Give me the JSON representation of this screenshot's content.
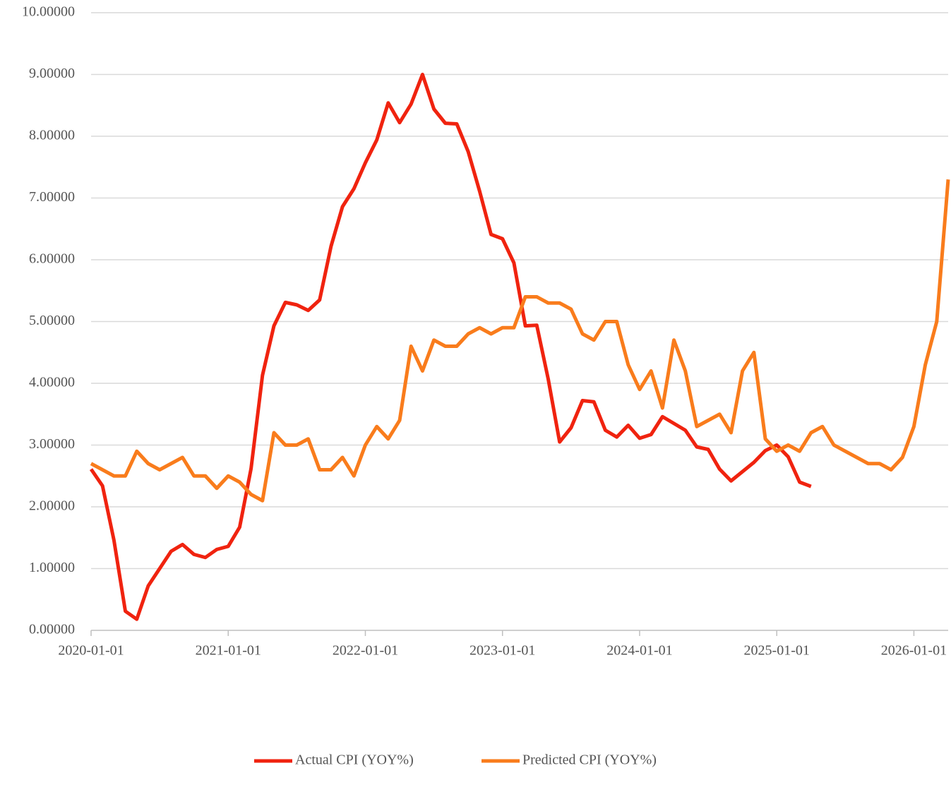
{
  "chart_data": {
    "type": "line",
    "x": [
      "2020-01-01",
      "2020-02-01",
      "2020-03-01",
      "2020-04-01",
      "2020-05-01",
      "2020-06-01",
      "2020-07-01",
      "2020-08-01",
      "2020-09-01",
      "2020-10-01",
      "2020-11-01",
      "2020-12-01",
      "2021-01-01",
      "2021-02-01",
      "2021-03-01",
      "2021-04-01",
      "2021-05-01",
      "2021-06-01",
      "2021-07-01",
      "2021-08-01",
      "2021-09-01",
      "2021-10-01",
      "2021-11-01",
      "2021-12-01",
      "2022-01-01",
      "2022-02-01",
      "2022-03-01",
      "2022-04-01",
      "2022-05-01",
      "2022-06-01",
      "2022-07-01",
      "2022-08-01",
      "2022-09-01",
      "2022-10-01",
      "2022-11-01",
      "2022-12-01",
      "2023-01-01",
      "2023-02-01",
      "2023-03-01",
      "2023-04-01",
      "2023-05-01",
      "2023-06-01",
      "2023-07-01",
      "2023-08-01",
      "2023-09-01",
      "2023-10-01",
      "2023-11-01",
      "2023-12-01",
      "2024-01-01",
      "2024-02-01",
      "2024-03-01",
      "2024-04-01",
      "2024-05-01",
      "2024-06-01",
      "2024-07-01",
      "2024-08-01",
      "2024-09-01",
      "2024-10-01",
      "2024-11-01",
      "2024-12-01",
      "2025-01-01",
      "2025-02-01",
      "2025-03-01",
      "2025-04-01",
      "2025-05-01",
      "2025-06-01",
      "2025-07-01",
      "2025-08-01",
      "2025-09-01",
      "2025-10-01",
      "2025-11-01",
      "2025-12-01",
      "2026-01-01",
      "2026-02-01",
      "2026-03-01",
      "2026-04-01"
    ],
    "series": [
      {
        "name": "Actual CPI (YOY%)",
        "color": "#f0230f",
        "values": [
          2.61,
          2.34,
          1.46,
          0.31,
          0.18,
          0.72,
          1.0,
          1.28,
          1.39,
          1.23,
          1.18,
          1.31,
          1.36,
          1.67,
          2.62,
          4.13,
          4.93,
          5.31,
          5.27,
          5.18,
          5.35,
          6.22,
          6.86,
          7.15,
          7.57,
          7.94,
          8.54,
          8.22,
          8.52,
          9.0,
          8.44,
          8.21,
          8.2,
          7.75,
          7.11,
          6.41,
          6.34,
          5.95,
          4.93,
          4.94,
          4.07,
          3.05,
          3.28,
          3.72,
          3.7,
          3.24,
          3.13,
          3.32,
          3.11,
          3.17,
          3.46,
          3.35,
          3.24,
          2.97,
          2.93,
          2.61,
          2.42,
          2.57,
          2.72,
          2.91,
          3.0,
          2.81,
          2.4,
          2.33,
          null,
          null,
          null,
          null,
          null,
          null,
          null,
          null,
          null,
          null,
          null,
          null
        ]
      },
      {
        "name": "Predicted CPI (YOY%)",
        "color": "#f97c1c",
        "values": [
          2.7,
          2.6,
          2.5,
          2.5,
          2.9,
          2.7,
          2.6,
          2.7,
          2.8,
          2.5,
          2.5,
          2.3,
          2.5,
          2.4,
          2.2,
          2.1,
          3.2,
          3.0,
          3.0,
          3.1,
          2.6,
          2.6,
          2.8,
          2.5,
          3.0,
          3.3,
          3.1,
          3.4,
          4.6,
          4.2,
          4.7,
          4.6,
          4.6,
          4.8,
          4.9,
          4.8,
          4.9,
          4.9,
          5.4,
          5.4,
          5.3,
          5.3,
          5.2,
          4.8,
          4.7,
          5.0,
          5.0,
          4.3,
          3.9,
          4.2,
          3.6,
          4.7,
          4.2,
          3.3,
          3.4,
          3.5,
          3.2,
          4.2,
          4.5,
          3.1,
          2.9,
          3.0,
          2.9,
          3.2,
          3.3,
          3.0,
          2.9,
          2.8,
          2.7,
          2.7,
          2.6,
          2.8,
          3.3,
          4.3,
          5.0,
          7.3
        ]
      }
    ],
    "xlim": [
      "2020-01-01",
      "2026-04-01"
    ],
    "xticks": [
      "2020-01-01",
      "2021-01-01",
      "2022-01-01",
      "2023-01-01",
      "2024-01-01",
      "2025-01-01",
      "2026-01-01"
    ],
    "ylim": [
      0,
      10
    ],
    "yticks": [
      {
        "value": 0,
        "label": "0.00000"
      },
      {
        "value": 1,
        "label": "1.00000"
      },
      {
        "value": 2,
        "label": "2.00000"
      },
      {
        "value": 3,
        "label": "3.00000"
      },
      {
        "value": 4,
        "label": "4.00000"
      },
      {
        "value": 5,
        "label": "5.00000"
      },
      {
        "value": 6,
        "label": "6.00000"
      },
      {
        "value": 7,
        "label": "7.00000"
      },
      {
        "value": 8,
        "label": "8.00000"
      },
      {
        "value": 9,
        "label": "9.00000"
      },
      {
        "value": 10,
        "label": "10.00000"
      }
    ],
    "grid": true,
    "legend": "bottom"
  }
}
